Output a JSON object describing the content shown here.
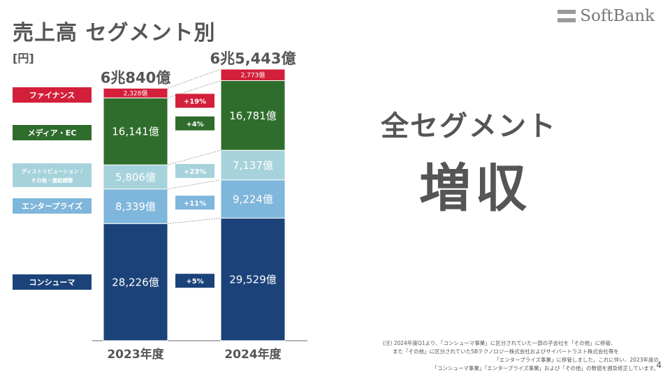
{
  "header": {
    "title": "売上高 セグメント別",
    "unit": "[円]",
    "logo_text": "SoftBank"
  },
  "headline": {
    "line1": "全セグメント",
    "line2": "増収"
  },
  "footnote": {
    "lines": [
      "(注) 2024年度Q1より、「コンシューマ事業」に区分されていた一部の子会社を「その他」に移管、",
      "また「その他」に区分されていたSBテクノロジー株式会社およびサイバートラスト株式会社等を",
      "「エンタープライズ事業」に移管しました。これに伴い、2023年度の",
      "「コンシューマ事業」「エンタープライズ事業」および「その他」の数値を遡及修正しています。"
    ]
  },
  "page_number": "4",
  "chart_data": {
    "type": "bar",
    "stacked": true,
    "categories": [
      "2023年度",
      "2024年度"
    ],
    "totals": [
      "6兆840億",
      "6兆5,443億"
    ],
    "series": [
      {
        "name": "コンシューマ",
        "color": "#1c4379",
        "values": [
          28226,
          29529
        ],
        "labels": [
          "28,226億",
          "29,529億"
        ],
        "growth": "+5%"
      },
      {
        "name": "エンタープライズ",
        "color": "#7fb6db",
        "values": [
          8339,
          9224
        ],
        "labels": [
          "8,339億",
          "9,224億"
        ],
        "growth": "+11%"
      },
      {
        "name": "ディストリビューション / その他・連結調整",
        "name_lines": [
          "ディストリビューション /",
          "その他・連結調整"
        ],
        "color": "#a6d2db",
        "values": [
          5806,
          7137
        ],
        "labels": [
          "5,806億",
          "7,137億"
        ],
        "growth": "+23%"
      },
      {
        "name": "メディア・EC",
        "color": "#2f6d2c",
        "values": [
          16141,
          16781
        ],
        "labels": [
          "16,141億",
          "16,781億"
        ],
        "growth": "+4%"
      },
      {
        "name": "ファイナンス",
        "color": "#d31f3a",
        "values": [
          2328,
          2773
        ],
        "labels": [
          "2,328億",
          "2,773億"
        ],
        "growth": "+19%"
      }
    ]
  }
}
